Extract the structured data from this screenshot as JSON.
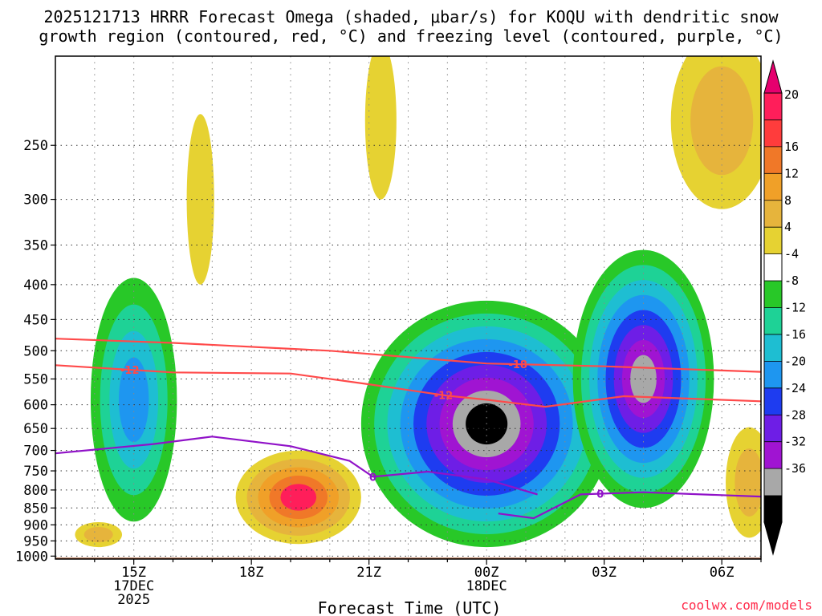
{
  "chart_data": {
    "type": "heatmap",
    "title_line1": "2025121713 HRRR Forecast Omega (shaded, μbar/s) for KOQU with dendritic snow",
    "title_line2": "growth region (contoured, red, °C) and freezing level (contoured, purple, °C)",
    "xlabel": "Forecast Time (UTC)",
    "credit": "coolwx.com/models",
    "x_range_hours": [
      13.0,
      31.0
    ],
    "y_range_hpa": [
      1010,
      185
    ],
    "x_ticks": [
      {
        "hour": 15,
        "lines": [
          "15Z",
          "17DEC",
          "2025"
        ]
      },
      {
        "hour": 18,
        "lines": [
          "18Z"
        ]
      },
      {
        "hour": 21,
        "lines": [
          "21Z"
        ]
      },
      {
        "hour": 24,
        "lines": [
          "00Z",
          "18DEC"
        ]
      },
      {
        "hour": 27,
        "lines": [
          "03Z"
        ]
      },
      {
        "hour": 30,
        "lines": [
          "06Z"
        ]
      }
    ],
    "y_ticks": [
      250,
      300,
      350,
      400,
      450,
      500,
      550,
      600,
      650,
      700,
      750,
      800,
      850,
      900,
      950,
      1000
    ],
    "colorbar": {
      "labels": [
        20,
        16,
        12,
        8,
        4,
        -4,
        -8,
        -12,
        -16,
        -20,
        -24,
        -28,
        -32,
        -36
      ],
      "colors": [
        "#ff1e5a",
        "#ff3c3c",
        "#f07828",
        "#f0a028",
        "#e6b43c",
        "#e6d232",
        "#ffffff",
        "#28c828",
        "#1ed296",
        "#1ebed2",
        "#1e96f0",
        "#1e3cf0",
        "#6e1ee6",
        "#a014d2",
        "#a8a8a8",
        "#000000"
      ],
      "top_color": "#e6006e",
      "bottom_color": "#000000"
    },
    "omega_blobs": [
      {
        "cx": 15.0,
        "cy": 590,
        "rx": 1.1,
        "ry": 300,
        "levels": [
          -4,
          -8,
          -12,
          -16
        ]
      },
      {
        "cx": 19.2,
        "cy": 820,
        "rx": 1.6,
        "ry": 140,
        "levels": [
          4,
          8,
          12,
          16,
          20
        ]
      },
      {
        "cx": 14.1,
        "cy": 930,
        "rx": 0.6,
        "ry": 40,
        "levels": [
          4,
          8
        ]
      },
      {
        "cx": 24.0,
        "cy": 640,
        "rx": 3.2,
        "ry": 330,
        "levels": [
          -4,
          -8,
          -12,
          -16,
          -20,
          -24,
          -28,
          -32,
          -36
        ]
      },
      {
        "cx": 28.0,
        "cy": 550,
        "rx": 1.8,
        "ry": 300,
        "levels": [
          -4,
          -8,
          -12,
          -16,
          -20,
          -24,
          -28,
          -32
        ]
      },
      {
        "cx": 30.0,
        "cy": 230,
        "rx": 1.3,
        "ry": 80,
        "levels": [
          4,
          8
        ]
      },
      {
        "cx": 16.7,
        "cy": 300,
        "rx": 0.35,
        "ry": 100,
        "levels": [
          4
        ]
      },
      {
        "cx": 21.3,
        "cy": 230,
        "rx": 0.4,
        "ry": 70,
        "levels": [
          4
        ]
      },
      {
        "cx": 30.7,
        "cy": 780,
        "rx": 0.6,
        "ry": 160,
        "levels": [
          4,
          8
        ]
      }
    ],
    "isotherms": [
      {
        "label": "-18",
        "color": "#ff4a4a",
        "label_hour": 24.8,
        "points": [
          [
            13.0,
            480
          ],
          [
            16.0,
            487
          ],
          [
            20.0,
            500
          ],
          [
            24.0,
            522
          ],
          [
            27.0,
            527
          ],
          [
            31.0,
            537
          ]
        ]
      },
      {
        "label": "-12",
        "color": "#ff4a4a",
        "label_hour": 14.9,
        "points": [
          [
            13.0,
            525
          ],
          [
            16.0,
            538
          ],
          [
            19.0,
            540
          ],
          [
            21.0,
            560
          ],
          [
            23.0,
            582
          ],
          [
            24.0,
            590
          ],
          [
            25.5,
            604
          ],
          [
            27.5,
            583
          ],
          [
            31.0,
            593
          ]
        ]
      },
      {
        "label": "-12",
        "color": "#ff4a4a",
        "label_hour": 22.9,
        "points": []
      },
      {
        "label": "0",
        "color": "#9012c8",
        "label_hour": 21.1,
        "points": [
          [
            13.0,
            707
          ],
          [
            15.5,
            685
          ],
          [
            17.0,
            668
          ],
          [
            19.0,
            690
          ],
          [
            20.5,
            725
          ],
          [
            21.1,
            765
          ],
          [
            22.5,
            752
          ],
          [
            24.0,
            772
          ],
          [
            25.3,
            812
          ]
        ]
      },
      {
        "label": "0",
        "color": "#9012c8",
        "label_hour": 26.9,
        "points": [
          [
            24.3,
            866
          ],
          [
            25.2,
            880
          ],
          [
            26.4,
            812
          ],
          [
            28.0,
            806
          ],
          [
            31.0,
            818
          ]
        ]
      }
    ]
  }
}
